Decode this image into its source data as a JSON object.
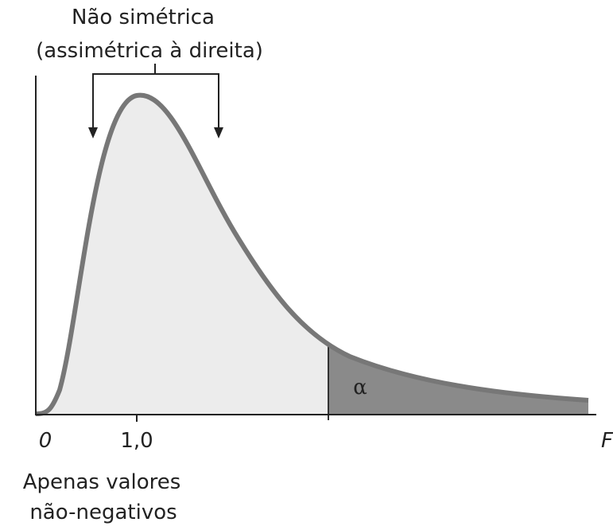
{
  "title": {
    "line1": "Não simétrica",
    "line2": "(assimétrica à direita)"
  },
  "axis": {
    "origin_label": "0",
    "tick_label": "1,0",
    "x_label": "F"
  },
  "region_label": "α",
  "note": {
    "line1": "Apenas valores",
    "line2": "não-negativos"
  }
}
